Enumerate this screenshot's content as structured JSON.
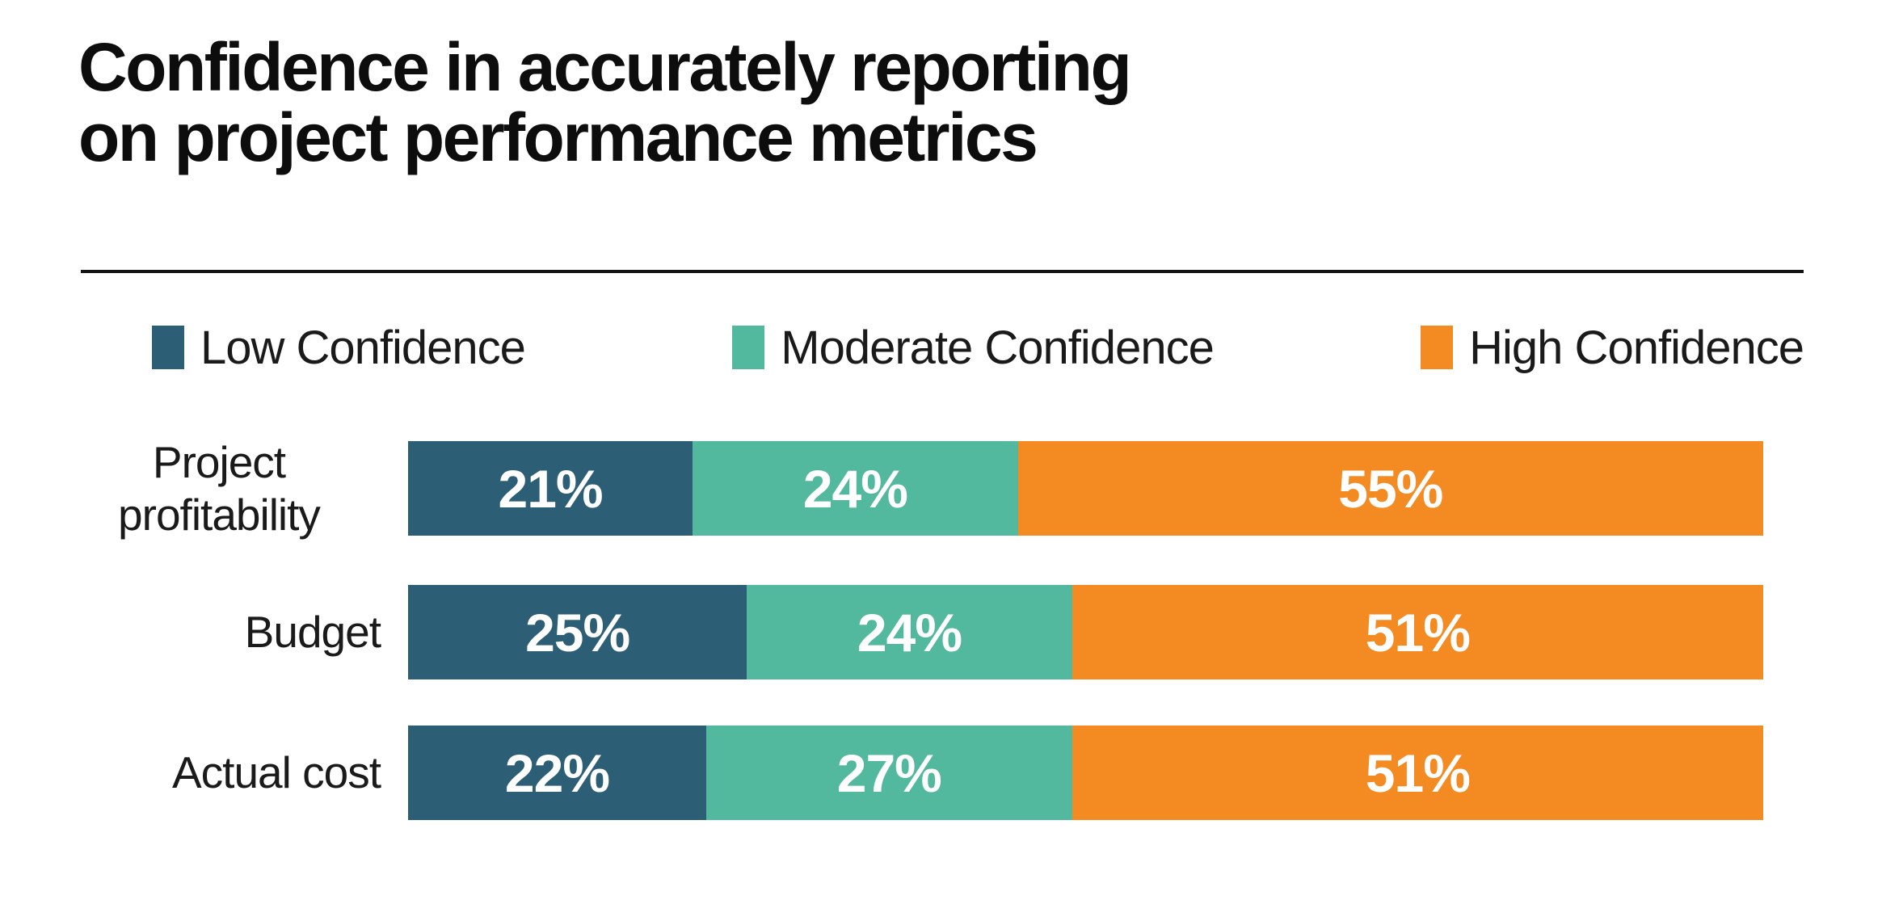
{
  "header": {
    "title_line1": "Confidence in accurately reporting",
    "title_line2": "on project performance metrics"
  },
  "colors": {
    "low_confidence": "#2C5F76",
    "moderate_confidence": "#52B89E",
    "high_confidence": "#F48B22",
    "title_text": "#0D0D0D",
    "divider": "#141414",
    "value_text": "#FFFFFF",
    "label_text": "#1A1A1A",
    "background": "#FFFFFF"
  },
  "legend": {
    "items": [
      {
        "label": "Low Confidence",
        "color": "#2C5F76"
      },
      {
        "label": "Moderate Confidence",
        "color": "#52B89E"
      },
      {
        "label": "High Confidence",
        "color": "#F48B22"
      }
    ]
  },
  "chart_data": {
    "type": "bar",
    "orientation": "horizontal",
    "stacked": true,
    "title": "Confidence in accurately reporting on project performance metrics",
    "categories": [
      "Project profitability",
      "Budget",
      "Actual cost"
    ],
    "series": [
      {
        "name": "Low Confidence",
        "color": "#2C5F76",
        "values": [
          21,
          25,
          22
        ]
      },
      {
        "name": "Moderate Confidence",
        "color": "#52B89E",
        "values": [
          24,
          24,
          27
        ]
      },
      {
        "name": "High Confidence",
        "color": "#F48B22",
        "values": [
          55,
          51,
          51
        ]
      }
    ],
    "value_suffix": "%",
    "xlim": [
      0,
      100
    ],
    "data_labels": true,
    "legend_position": "top",
    "grid": false
  }
}
